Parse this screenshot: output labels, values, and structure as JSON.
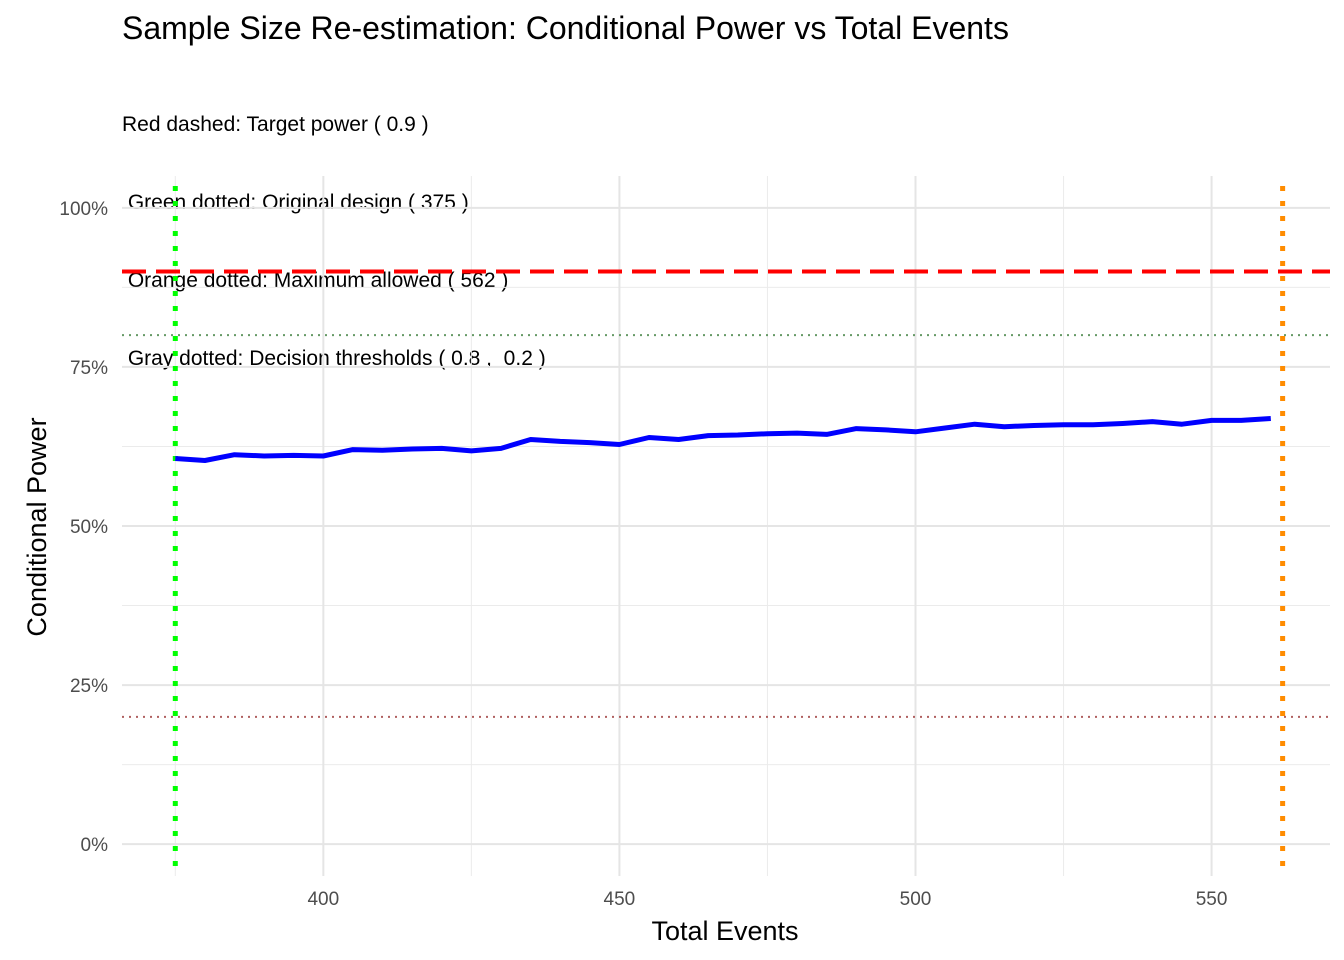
{
  "chart_data": {
    "type": "line",
    "title": "Sample Size Re-estimation: Conditional Power vs Total Events",
    "subtitle": [
      "Red dashed: Target power ( 0.9 )",
      " Green dotted: Original design ( 375 )",
      " Orange dotted: Maximum allowed ( 562 )",
      " Gray dotted: Decision thresholds ( 0.8 ,  0.2 )"
    ],
    "xlabel": "Total Events",
    "ylabel": "Conditional Power",
    "xlim": [
      366,
      570
    ],
    "ylim": [
      -0.05,
      1.05
    ],
    "x_ticks": [
      {
        "value": 400,
        "label": "400"
      },
      {
        "value": 450,
        "label": "450"
      },
      {
        "value": 500,
        "label": "500"
      },
      {
        "value": 550,
        "label": "550"
      }
    ],
    "y_ticks": [
      {
        "value": 0,
        "label": "0%"
      },
      {
        "value": 0.25,
        "label": "25%"
      },
      {
        "value": 0.5,
        "label": "50%"
      },
      {
        "value": 0.75,
        "label": "75%"
      },
      {
        "value": 1,
        "label": "100%"
      }
    ],
    "grid": true,
    "series": [
      {
        "color": "#0000ff",
        "x": [
          375,
          380,
          385,
          390,
          395,
          400,
          405,
          410,
          415,
          420,
          425,
          430,
          435,
          440,
          445,
          450,
          455,
          460,
          465,
          470,
          475,
          480,
          485,
          490,
          495,
          500,
          505,
          510,
          515,
          520,
          525,
          530,
          535,
          540,
          545,
          550,
          555,
          560
        ],
        "y": [
          0.606,
          0.603,
          0.612,
          0.61,
          0.611,
          0.61,
          0.62,
          0.619,
          0.621,
          0.622,
          0.618,
          0.622,
          0.636,
          0.633,
          0.631,
          0.628,
          0.639,
          0.636,
          0.642,
          0.643,
          0.645,
          0.646,
          0.644,
          0.653,
          0.651,
          0.648,
          0.654,
          0.66,
          0.656,
          0.658,
          0.659,
          0.659,
          0.661,
          0.664,
          0.66,
          0.666,
          0.666,
          0.669
        ]
      }
    ],
    "reference_lines": [
      {
        "axis": "y",
        "value": 0.9,
        "color": "#ff0000",
        "style": "dashed"
      },
      {
        "axis": "y",
        "value": 0.8,
        "color": "#669966",
        "style": "dotted"
      },
      {
        "axis": "y",
        "value": 0.2,
        "color": "#b06060",
        "style": "dotted"
      },
      {
        "axis": "x",
        "value": 375,
        "color": "#00ff00",
        "style": "dotted"
      },
      {
        "axis": "x",
        "value": 562,
        "color": "#ff8c00",
        "style": "dotted"
      }
    ]
  }
}
